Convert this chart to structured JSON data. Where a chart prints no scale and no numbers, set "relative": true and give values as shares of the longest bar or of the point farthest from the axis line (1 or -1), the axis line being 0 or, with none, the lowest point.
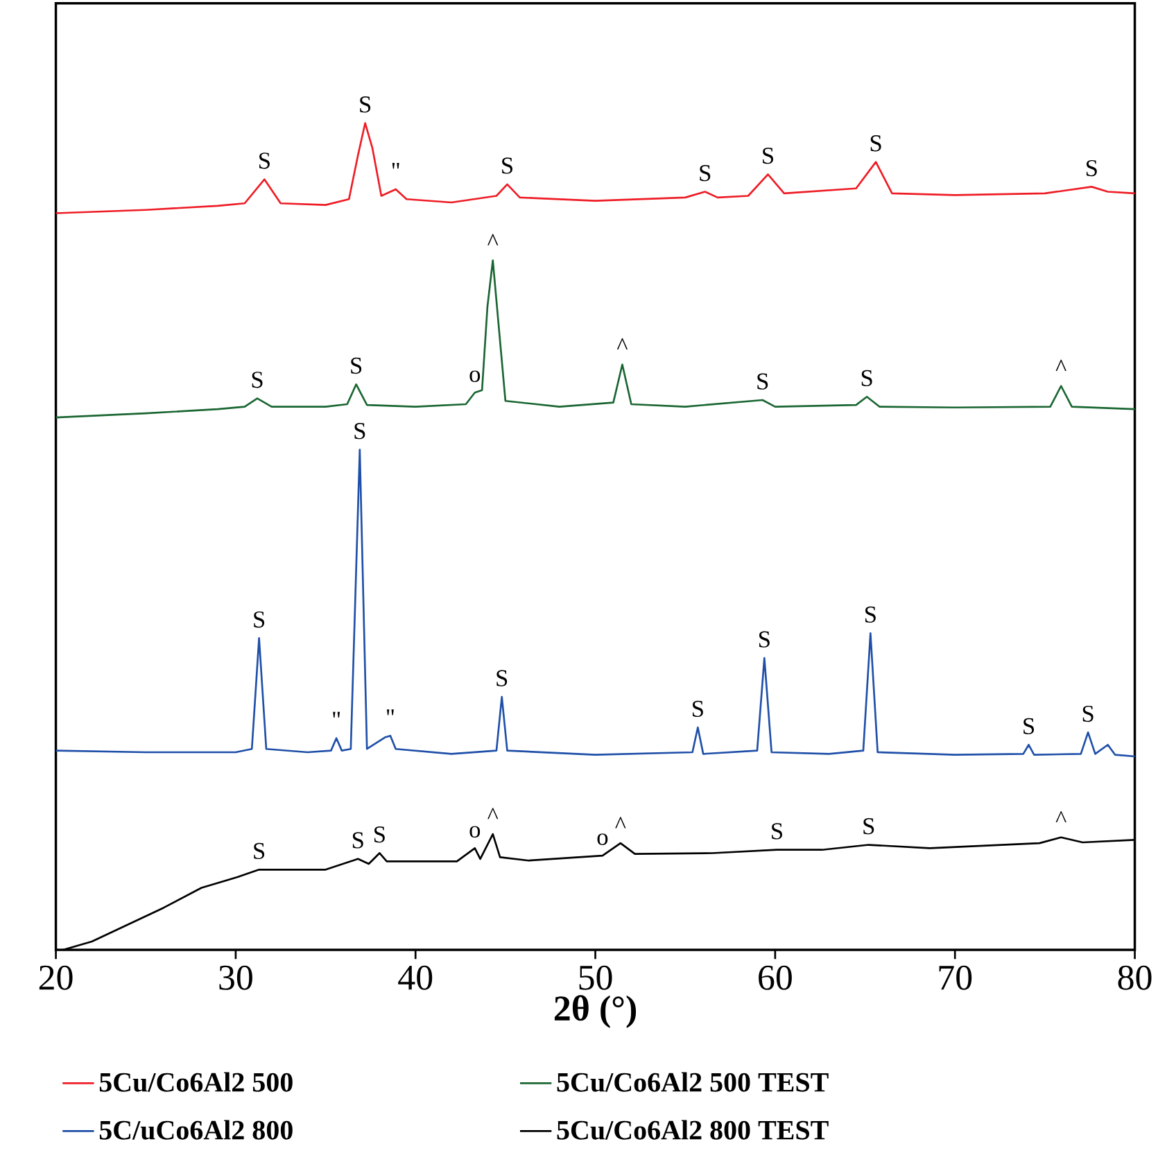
{
  "chart_data": {
    "type": "line",
    "relative": true,
    "xlabel": "2θ (°)",
    "xlim": [
      20,
      80
    ],
    "xticks": [
      20,
      30,
      40,
      50,
      60,
      70,
      80
    ],
    "tick_labels": "x",
    "grid": false,
    "legend": "bottom",
    "marker": "none",
    "line_style": "solid",
    "series": [
      {
        "name": "5Cu/Co6Al2 500",
        "color": "#ee1c25",
        "x": [
          20,
          25,
          29,
          30.5,
          31.6,
          32.5,
          35,
          36.3,
          36.8,
          37.2,
          37.6,
          38.1,
          38.9,
          39.5,
          42,
          44.5,
          45.1,
          45.8,
          50,
          55,
          56.1,
          56.8,
          58.5,
          59.6,
          60.5,
          64.5,
          65.6,
          66.5,
          70,
          75,
          77.6,
          78.5,
          80
        ],
        "values": [
          0.891,
          0.895,
          0.9,
          0.903,
          0.932,
          0.903,
          0.901,
          0.908,
          0.961,
          1.0,
          0.97,
          0.912,
          0.92,
          0.908,
          0.904,
          0.912,
          0.926,
          0.91,
          0.906,
          0.91,
          0.917,
          0.91,
          0.912,
          0.938,
          0.915,
          0.921,
          0.953,
          0.915,
          0.913,
          0.915,
          0.923,
          0.917,
          0.915
        ]
      },
      {
        "name": "5Cu/Co6Al2 500 TEST",
        "color": "#1a6632",
        "x": [
          20,
          25,
          29,
          30.5,
          31.2,
          32,
          35,
          36.2,
          36.7,
          37.3,
          40,
          42.8,
          43.3,
          43.7,
          44,
          44.3,
          44.6,
          45,
          48,
          51,
          51.5,
          52,
          55,
          59.3,
          60,
          64.5,
          65.1,
          65.8,
          70,
          75.3,
          75.9,
          76.5,
          80
        ],
        "values": [
          0.644,
          0.649,
          0.654,
          0.657,
          0.667,
          0.657,
          0.657,
          0.66,
          0.684,
          0.659,
          0.657,
          0.66,
          0.674,
          0.677,
          0.778,
          0.834,
          0.761,
          0.664,
          0.657,
          0.662,
          0.708,
          0.66,
          0.657,
          0.665,
          0.657,
          0.659,
          0.669,
          0.657,
          0.656,
          0.657,
          0.682,
          0.657,
          0.654
        ]
      },
      {
        "name": "5C/uCo6Al2 800",
        "color": "#1f4fa8",
        "x": [
          20,
          25,
          30,
          30.9,
          31.3,
          31.7,
          34,
          35.3,
          35.6,
          35.9,
          36.4,
          36.9,
          37.3,
          38.3,
          38.6,
          38.9,
          42,
          44.5,
          44.8,
          45.1,
          50,
          55.4,
          55.7,
          56,
          59,
          59.4,
          59.8,
          63,
          64.9,
          65.3,
          65.7,
          70,
          73.8,
          74.1,
          74.4,
          77,
          77.4,
          77.8,
          78.5,
          78.9,
          80
        ],
        "values": [
          0.241,
          0.239,
          0.239,
          0.243,
          0.377,
          0.243,
          0.239,
          0.241,
          0.256,
          0.241,
          0.243,
          0.605,
          0.243,
          0.257,
          0.259,
          0.243,
          0.237,
          0.241,
          0.306,
          0.241,
          0.236,
          0.239,
          0.269,
          0.237,
          0.241,
          0.353,
          0.239,
          0.237,
          0.241,
          0.383,
          0.239,
          0.236,
          0.237,
          0.248,
          0.236,
          0.237,
          0.263,
          0.237,
          0.248,
          0.236,
          0.234
        ]
      },
      {
        "name": "5Cu/Co6Al2 800 TEST",
        "color": "#000000",
        "x": [
          20.4,
          22,
          26,
          28.1,
          30.1,
          31.3,
          32.5,
          35,
          36.8,
          37.4,
          38,
          38.4,
          42.3,
          43.3,
          43.6,
          44.3,
          44.7,
          46.3,
          50.4,
          51.4,
          52.2,
          56.5,
          60.1,
          62.6,
          65.2,
          68.6,
          74.7,
          75.9,
          77.1,
          80
        ],
        "values": [
          0,
          0.01,
          0.051,
          0.075,
          0.088,
          0.097,
          0.097,
          0.097,
          0.11,
          0.104,
          0.117,
          0.107,
          0.107,
          0.123,
          0.11,
          0.14,
          0.112,
          0.108,
          0.114,
          0.129,
          0.116,
          0.117,
          0.121,
          0.121,
          0.127,
          0.123,
          0.129,
          0.136,
          0.13,
          0.133
        ]
      }
    ],
    "annotations": [
      {
        "text": "S",
        "x": 31.6,
        "y": 0.932
      },
      {
        "text": "S",
        "x": 37.2,
        "y": 1.0
      },
      {
        "text": "\"",
        "x": 38.9,
        "y": 0.92
      },
      {
        "text": "S",
        "x": 45.1,
        "y": 0.926
      },
      {
        "text": "S",
        "x": 56.1,
        "y": 0.917
      },
      {
        "text": "S",
        "x": 59.6,
        "y": 0.938
      },
      {
        "text": "S",
        "x": 65.6,
        "y": 0.953
      },
      {
        "text": "S",
        "x": 77.6,
        "y": 0.923
      },
      {
        "text": "S",
        "x": 31.2,
        "y": 0.667
      },
      {
        "text": "S",
        "x": 36.7,
        "y": 0.684
      },
      {
        "text": "o",
        "x": 43.3,
        "y": 0.674
      },
      {
        "text": "^",
        "x": 44.3,
        "y": 0.834
      },
      {
        "text": "^",
        "x": 51.5,
        "y": 0.708
      },
      {
        "text": "S",
        "x": 59.3,
        "y": 0.665
      },
      {
        "text": "S",
        "x": 65.1,
        "y": 0.669
      },
      {
        "text": "^",
        "x": 75.9,
        "y": 0.682
      },
      {
        "text": "S",
        "x": 36.9,
        "y": 0.605
      },
      {
        "text": "S",
        "x": 31.3,
        "y": 0.377
      },
      {
        "text": "\"",
        "x": 35.6,
        "y": 0.256
      },
      {
        "text": "\"",
        "x": 38.6,
        "y": 0.259
      },
      {
        "text": "S",
        "x": 44.8,
        "y": 0.306
      },
      {
        "text": "S",
        "x": 55.7,
        "y": 0.269
      },
      {
        "text": "S",
        "x": 59.4,
        "y": 0.353
      },
      {
        "text": "S",
        "x": 65.3,
        "y": 0.383
      },
      {
        "text": "S",
        "x": 74.1,
        "y": 0.248
      },
      {
        "text": "S",
        "x": 77.4,
        "y": 0.263
      },
      {
        "text": "S",
        "x": 31.3,
        "y": 0.097
      },
      {
        "text": "S",
        "x": 36.8,
        "y": 0.11
      },
      {
        "text": "S",
        "x": 38,
        "y": 0.117
      },
      {
        "text": "o",
        "x": 43.3,
        "y": 0.123
      },
      {
        "text": "^",
        "x": 44.3,
        "y": 0.14
      },
      {
        "text": "o",
        "x": 50.4,
        "y": 0.114
      },
      {
        "text": "^",
        "x": 51.4,
        "y": 0.129
      },
      {
        "text": "S",
        "x": 60.1,
        "y": 0.121
      },
      {
        "text": "S",
        "x": 65.2,
        "y": 0.127
      },
      {
        "text": "^",
        "x": 75.9,
        "y": 0.136
      }
    ]
  }
}
